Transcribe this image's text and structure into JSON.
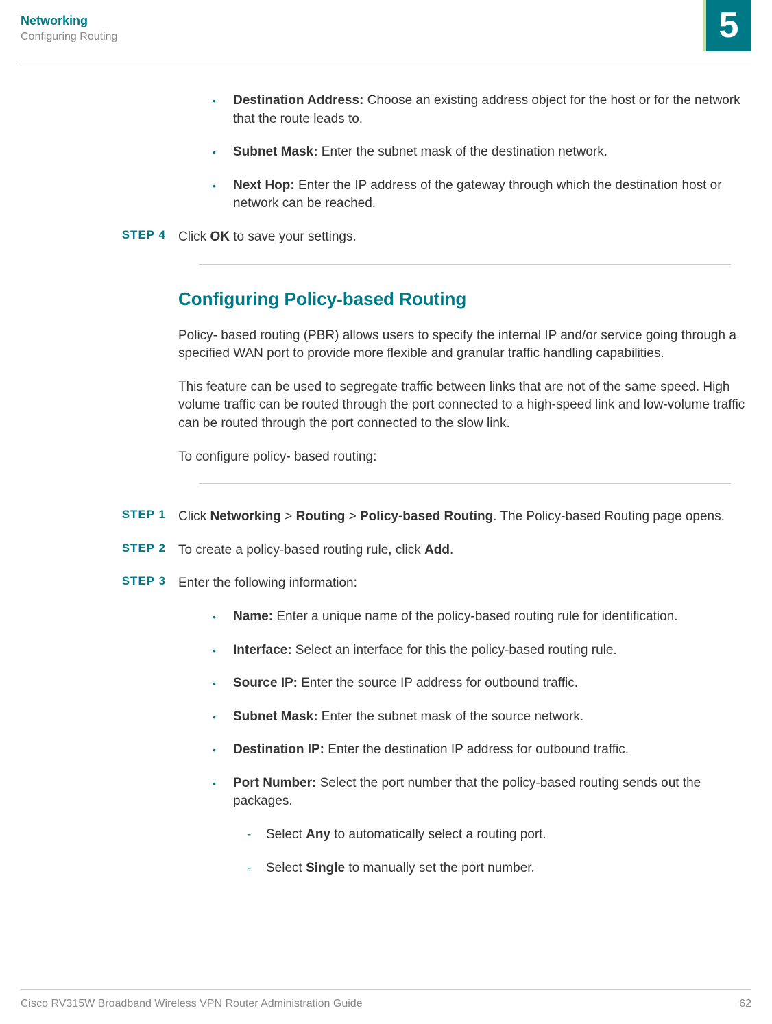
{
  "header": {
    "title": "Networking",
    "subtitle": "Configuring Routing",
    "chapter_number": "5"
  },
  "top_bullets": [
    {
      "label": "Destination Address:",
      "text": " Choose an existing address object for the host or for the network that the route leads to."
    },
    {
      "label": "Subnet Mask:",
      "text": " Enter the subnet mask of the destination network."
    },
    {
      "label": "Next Hop:",
      "text": " Enter the IP address of the gateway through which the destination host or network can be reached."
    }
  ],
  "step4": {
    "label": "STEP  4",
    "prefix": "Click ",
    "bold": "OK",
    "suffix": " to save your settings."
  },
  "section": {
    "heading": "Configuring Policy-based Routing",
    "para1": "Policy- based routing (PBR) allows users to specify the internal IP and/or service going through a specified WAN port to provide more flexible and granular traffic handling capabilities.",
    "para2": "This feature can be used to segregate traffic between links that are not of the same speed. High volume traffic can be routed through the port connected to a high-speed link and low-volume traffic can be routed through the port connected to the slow link.",
    "para3": "To configure policy- based routing:"
  },
  "steps": {
    "s1": {
      "label": "STEP  1",
      "t1": "Click ",
      "b1": "Networking",
      "t2": " > ",
      "b2": "Routing",
      "t3": " > ",
      "b3": "Policy-based Routing",
      "t4": ". The Policy-based Routing page opens."
    },
    "s2": {
      "label": "STEP  2",
      "t1": "To create a policy-based routing rule, click ",
      "b1": "Add",
      "t2": "."
    },
    "s3": {
      "label": "STEP  3",
      "text": "Enter the following information:"
    }
  },
  "fields": [
    {
      "label": "Name:",
      "text": " Enter a unique name of the policy-based routing rule for identification."
    },
    {
      "label": "Interface:",
      "text": " Select an interface for this the policy-based routing rule."
    },
    {
      "label": "Source IP:",
      "text": " Enter the source IP address for outbound traffic."
    },
    {
      "label": "Subnet Mask:",
      "text": " Enter the subnet mask of the source network."
    },
    {
      "label": "Destination IP:",
      "text": " Enter the destination IP address for outbound traffic."
    },
    {
      "label": "Port Number:",
      "text": " Select the port number that the policy-based routing sends out the packages."
    }
  ],
  "port_options": {
    "any": {
      "t1": "Select ",
      "b": "Any",
      "t2": " to automatically select a routing port."
    },
    "single": {
      "t1": "Select ",
      "b": "Single",
      "t2": " to manually set the port number."
    }
  },
  "footer": {
    "guide": "Cisco RV315W Broadband Wireless VPN Router Administration Guide",
    "page": "62"
  },
  "colors": {
    "accent": "#007987",
    "muted": "#888888",
    "text": "#333333",
    "rule": "#cccccc",
    "badge_border": "#c4df9b"
  }
}
